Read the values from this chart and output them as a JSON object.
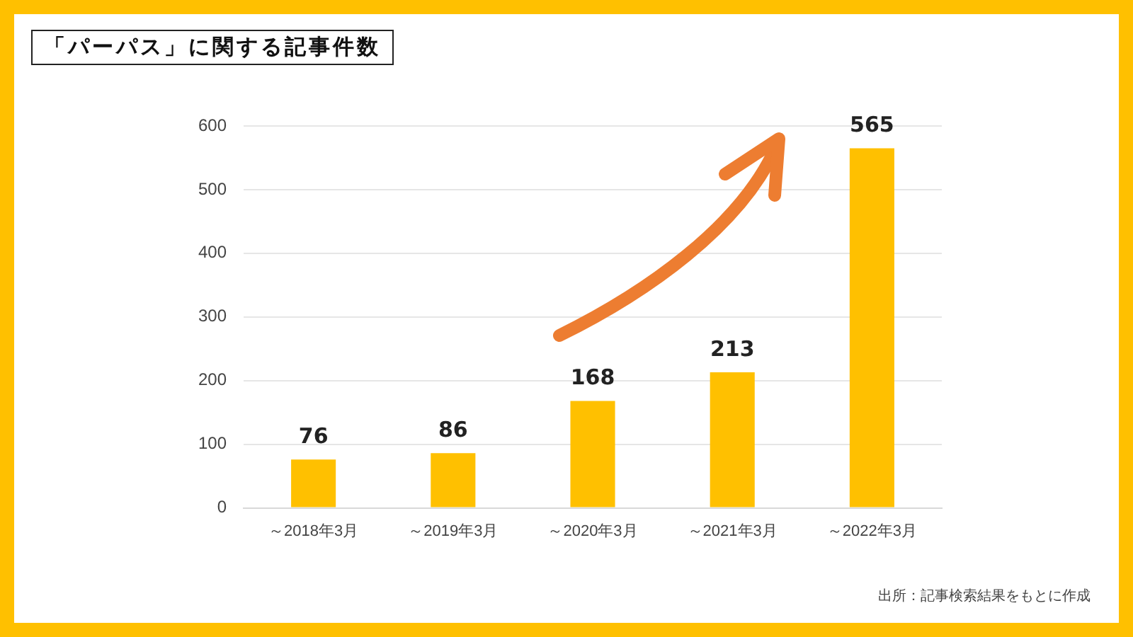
{
  "chart_data": {
    "type": "bar",
    "title": "「パーパス」に関する記事件数",
    "categories": [
      "～2018年3月",
      "～2019年3月",
      "～2020年3月",
      "～2021年3月",
      "～2022年3月"
    ],
    "values": [
      76,
      86,
      168,
      213,
      565
    ],
    "color": "#ffc000",
    "ylim": [
      0,
      600
    ],
    "yticks": [
      0,
      100,
      200,
      300,
      400,
      500,
      600
    ],
    "grid": "y",
    "data_labels": true,
    "annotations": [
      "出所：記事検索結果をもとに作成"
    ]
  }
}
